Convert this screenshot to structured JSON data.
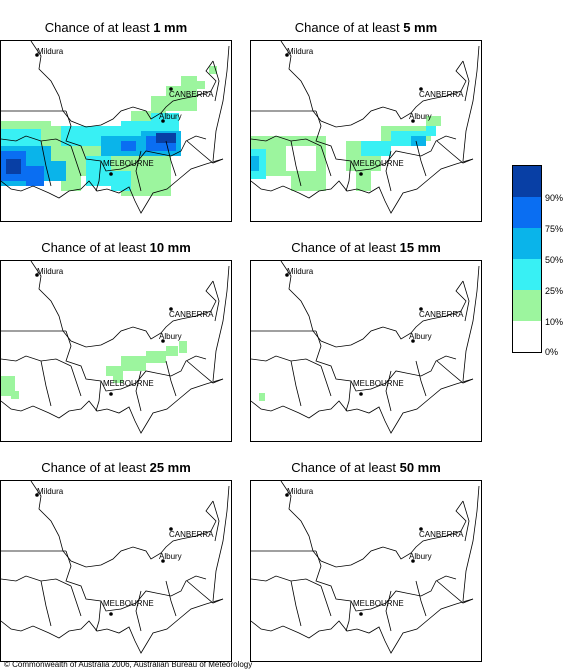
{
  "title_prefix": "Chance of at least",
  "place_labels": {
    "mildura": "Mildura",
    "canberra": "CANBERRA",
    "albury": "Albury",
    "melbourne": "MELBOURNE"
  },
  "panels": [
    {
      "amount": "1 mm"
    },
    {
      "amount": "5 mm"
    },
    {
      "amount": "10 mm"
    },
    {
      "amount": "15 mm"
    },
    {
      "amount": "25 mm"
    },
    {
      "amount": "50 mm"
    }
  ],
  "legend": {
    "colors": [
      "#083fa5",
      "#0a6ef2",
      "#0ab4ea",
      "#38f0f4",
      "#9cf59e",
      "#ffffff"
    ],
    "labels": [
      "90%",
      "75%",
      "50%",
      "25%",
      "10%",
      "0%"
    ]
  },
  "copyright": "© Commonwealth of Australia 2006, Australian Bureau of Meteorology"
}
